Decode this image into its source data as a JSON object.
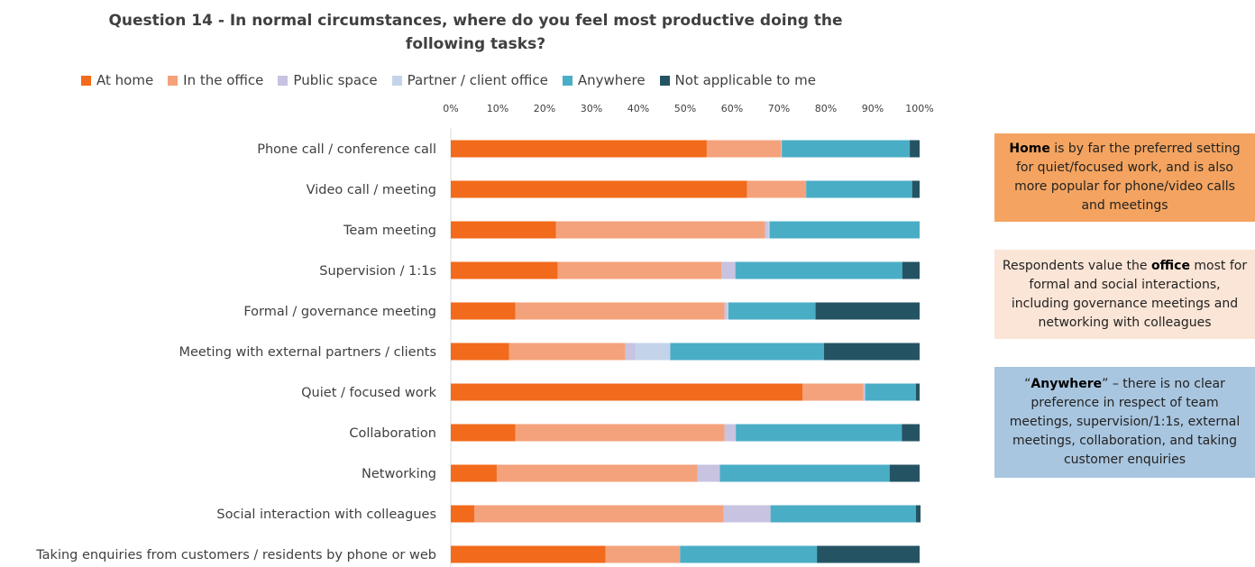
{
  "chart_data": {
    "type": "bar",
    "orientation": "horizontal",
    "stacked": "percent",
    "title": "Question 14 - In normal circumstances, where do you feel most productive doing the following tasks?",
    "legend_position": "top",
    "xlim": [
      0,
      100
    ],
    "x_ticks": [
      "0%",
      "10%",
      "20%",
      "30%",
      "40%",
      "50%",
      "60%",
      "70%",
      "80%",
      "90%",
      "100%"
    ],
    "grid": false,
    "categories": [
      "Phone call / conference call",
      "Video call / meeting",
      "Team meeting",
      "Supervision / 1:1s",
      "Formal / governance meeting",
      "Meeting with external partners / clients",
      "Quiet / focused work",
      "Collaboration",
      "Networking",
      "Social interaction with colleagues",
      "Taking enquiries from customers / residents by phone or web"
    ],
    "series": [
      {
        "name": "At home",
        "color": "#f26a1b",
        "values": [
          54.6,
          63.2,
          22.4,
          22.8,
          13.8,
          12.4,
          75.0,
          13.8,
          9.8,
          5.0,
          33.0
        ]
      },
      {
        "name": "In the office",
        "color": "#f4a27b",
        "values": [
          15.8,
          12.6,
          44.6,
          34.9,
          44.6,
          24.8,
          13.0,
          44.6,
          42.8,
          53.2,
          15.9
        ]
      },
      {
        "name": "Public space",
        "color": "#c8c3e0",
        "values": [
          0.2,
          0.0,
          0.6,
          3.0,
          0.6,
          2.2,
          0.4,
          2.4,
          4.8,
          10.0,
          0.0
        ]
      },
      {
        "name": "Partner / client office",
        "color": "#c3d4ea",
        "values": [
          0.0,
          0.0,
          0.4,
          0.0,
          0.2,
          7.4,
          0.0,
          0.0,
          0.0,
          0.0,
          0.0
        ]
      },
      {
        "name": "Anywhere",
        "color": "#4aadc6",
        "values": [
          27.3,
          22.6,
          32.0,
          35.6,
          18.6,
          32.8,
          10.8,
          35.4,
          36.2,
          31.0,
          29.2
        ]
      },
      {
        "name": "Not applicable to me",
        "color": "#245464",
        "values": [
          2.1,
          1.6,
          0.0,
          3.7,
          22.2,
          20.4,
          0.8,
          3.8,
          6.4,
          1.0,
          21.9
        ]
      }
    ]
  },
  "notes": [
    {
      "bold": "Home",
      "text": " is by far the preferred setting for quiet/focused work, and is also more popular for phone/video calls and meetings",
      "bg": "#f4a460"
    },
    {
      "pre": "Respondents value the ",
      "bold": "office",
      "text": " most for formal and social interactions, including governance meetings and networking with colleagues",
      "bg": "#fbe5d6"
    },
    {
      "pre": "“",
      "bold": "Anywhere",
      "text": "” – there is no clear preference in respect of team meetings, supervision/1:1s, external meetings, collaboration, and taking customer enquiries",
      "bg": "#a9c6e0"
    }
  ]
}
